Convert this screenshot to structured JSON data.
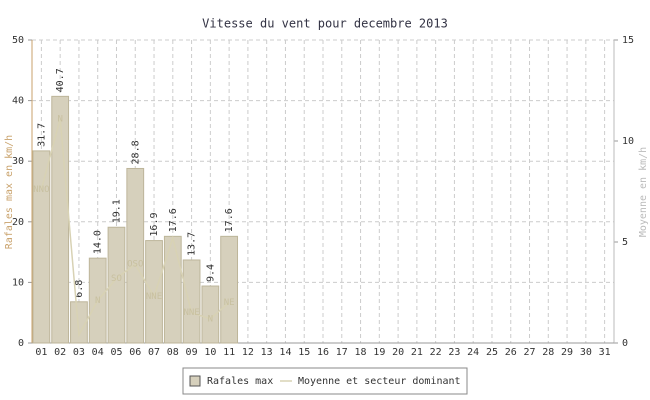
{
  "chart_data": {
    "type": "bar",
    "title": "Vitesse du vent pour decembre 2013",
    "y_label": "Rafales max en km/h",
    "y2_label": "Moyenne en km/h",
    "categories": [
      "01",
      "02",
      "03",
      "04",
      "05",
      "06",
      "07",
      "08",
      "09",
      "10",
      "11",
      "12",
      "13",
      "14",
      "15",
      "16",
      "17",
      "18",
      "19",
      "20",
      "21",
      "22",
      "23",
      "24",
      "25",
      "26",
      "27",
      "28",
      "29",
      "30",
      "31"
    ],
    "series": [
      {
        "name": "Rafales max",
        "type": "bar",
        "color": "#d6d0bc",
        "values": [
          31.7,
          40.7,
          6.8,
          14.0,
          19.1,
          28.8,
          16.9,
          17.6,
          13.7,
          9.4,
          17.6,
          null,
          null,
          null,
          null,
          null,
          null,
          null,
          null,
          null,
          null,
          null,
          null,
          null,
          null,
          null,
          null,
          null,
          null,
          null,
          null
        ],
        "value_labels": [
          "31.7",
          "40.7",
          "6.8",
          "14.0",
          "19.1",
          "28.8",
          "16.9",
          "17.6",
          "13.7",
          "9.4",
          "17.6",
          null,
          null,
          null,
          null,
          null,
          null,
          null,
          null,
          null,
          null,
          null,
          null,
          null,
          null,
          null,
          null,
          null,
          null,
          null,
          null
        ]
      },
      {
        "name": "Moyenne et secteur dominant",
        "type": "line",
        "axis": "y2",
        "color": "#d8d2b4",
        "values": [
          7.6,
          11.1,
          0.4,
          2.1,
          3.2,
          3.9,
          2.3,
          5.2,
          1.5,
          1.2,
          2.0,
          null,
          null,
          null,
          null,
          null,
          null,
          null,
          null,
          null,
          null,
          null,
          null,
          null,
          null,
          null,
          null,
          null,
          null,
          null,
          null
        ],
        "point_labels": [
          "NNO",
          "N",
          null,
          "N",
          "SO",
          "OSO",
          "NNE",
          null,
          "NNE",
          "N",
          "NE",
          null,
          null,
          null,
          null,
          null,
          null,
          null,
          null,
          null,
          null,
          null,
          null,
          null,
          null,
          null,
          null,
          null,
          null,
          null,
          null
        ]
      }
    ],
    "ylim": [
      0,
      50
    ],
    "yticks": [
      0,
      10,
      20,
      30,
      40,
      50
    ],
    "y2lim": [
      0,
      15
    ],
    "y2ticks": [
      0,
      5,
      10,
      15
    ],
    "grid": true
  }
}
